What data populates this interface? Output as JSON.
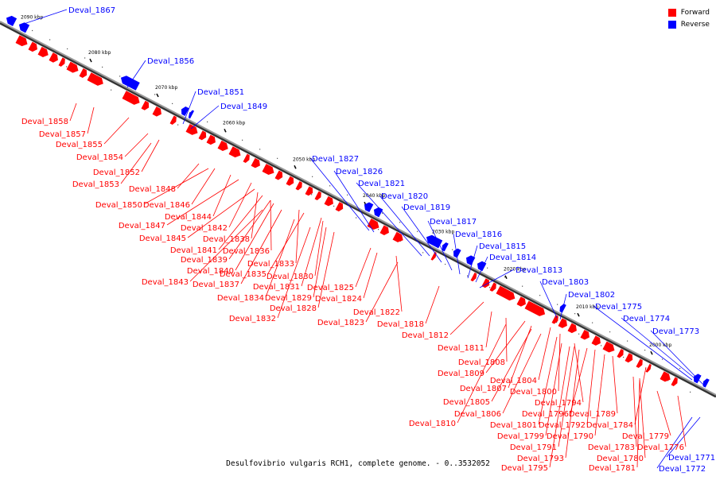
{
  "legend": [
    {
      "label": "Forward",
      "color": "#ff0000"
    },
    {
      "label": "Reverse",
      "color": "#0000ff"
    }
  ],
  "colors": {
    "forward": "#ff0000",
    "reverse": "#0000ff",
    "track": "#888888"
  },
  "caption": "Desulfovibrio vulgaris RCH1, complete genome. - 0..3532052",
  "ticks": [
    "2090 kbp",
    "2080 kbp",
    "2070 kbp",
    "2060 kbp",
    "2050 kbp",
    "2040 kbp",
    "2030 kbp",
    "2020 kbp",
    "2010 kbp",
    "2000 kbp"
  ],
  "reverse_genes": [
    "Deval_1867",
    "Deval_1856",
    "Deval_1851",
    "Deval_1849",
    "Deval_1827",
    "Deval_1826",
    "Deval_1821",
    "Deval_1820",
    "Deval_1819",
    "Deval_1817",
    "Deval_1816",
    "Deval_1815",
    "Deval_1814",
    "Deval_1813",
    "Deval_1803",
    "Deval_1802",
    "Deval_1775",
    "Deval_1774",
    "Deval_1773",
    "Deval_1771",
    "Deval_1772"
  ],
  "forward_genes": [
    "Deval_1858",
    "Deval_1857",
    "Deval_1855",
    "Deval_1854",
    "Deval_1852",
    "Deval_1853",
    "Deval_1848",
    "Deval_1850",
    "Deval_1846",
    "Deval_1844",
    "Deval_1847",
    "Deval_1842",
    "Deval_1845",
    "Deval_1838",
    "Deval_1841",
    "Deval_1836",
    "Deval_1839",
    "Deval_1833",
    "Deval_1840",
    "Deval_1835",
    "Deval_1830",
    "Deval_1843",
    "Deval_1837",
    "Deval_1831",
    "Deval_1825",
    "Deval_1834",
    "Deval_1829",
    "Deval_1824",
    "Deval_1828",
    "Deval_1822",
    "Deval_1832",
    "Deval_1823",
    "Deval_1818",
    "Deval_1812",
    "Deval_1811",
    "Deval_1808",
    "Deval_1809",
    "Deval_1804",
    "Deval_1807",
    "Deval_1800",
    "Deval_1805",
    "Deval_1794",
    "Deval_1806",
    "Deval_1796",
    "Deval_1789",
    "Deval_1801",
    "Deval_1792",
    "Deval_1784",
    "Deval_1810",
    "Deval_1799",
    "Deval_1790",
    "Deval_1779",
    "Deval_1791",
    "Deval_1783",
    "Deval_1776",
    "Deval_1793",
    "Deval_1780",
    "Deval_1795",
    "Deval_1781"
  ]
}
